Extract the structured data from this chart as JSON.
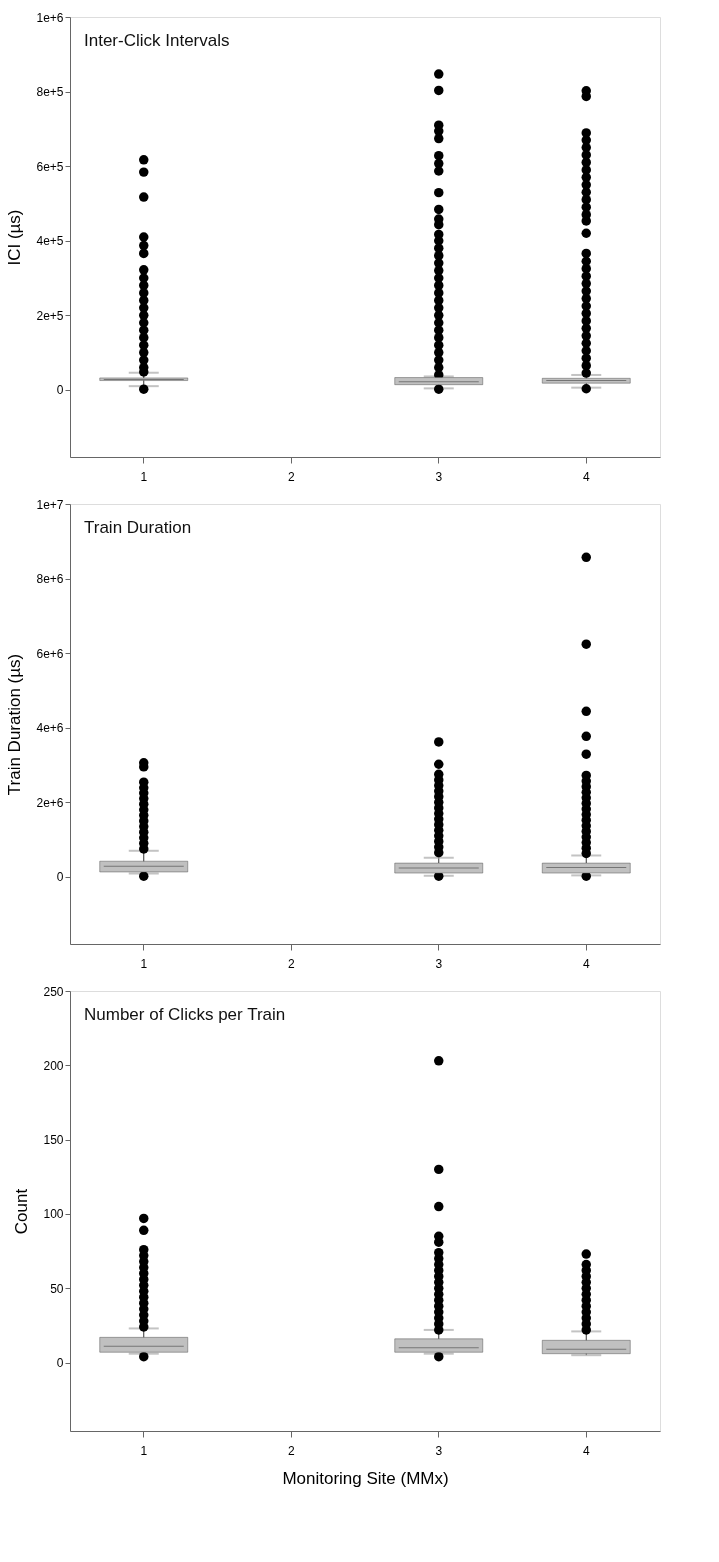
{
  "chart_data": [
    {
      "type": "box",
      "title": "Inter-Click Intervals",
      "ylabel": "ICI (µs)",
      "categories": [
        "1",
        "2",
        "3",
        "4"
      ],
      "ylim": [
        -180000,
        1000000
      ],
      "yticks": [
        0,
        {
          "value": 200000,
          "label": "2e+5"
        },
        {
          "value": 400000,
          "label": "4e+5"
        },
        {
          "value": 600000,
          "label": "6e+5"
        },
        {
          "value": 800000,
          "label": "8e+5"
        },
        {
          "value": 1000000,
          "label": "1e+6"
        }
      ],
      "grid": false,
      "series": [
        {
          "color": "#c0c0c0",
          "boxes": [
            {
              "low": 10000,
              "q1": 25000,
              "median": 28000,
              "q3": 32000,
              "high": 46000,
              "outliers": [
                617000,
                584000,
                517000,
                410000,
                387000,
                366000,
                322000,
                300000,
                280000,
                260000,
                240000,
                220000,
                200000,
                180000,
                160000,
                140000,
                120000,
                100000,
                80000,
                60000,
                48000,
                2000
              ]
            },
            null,
            {
              "low": 4000,
              "q1": 14000,
              "median": 22000,
              "q3": 33000,
              "high": 36000,
              "outliers": [
                847000,
                803000,
                710000,
                694000,
                674000,
                628000,
                607000,
                587000,
                529000,
                484000,
                458000,
                443000,
                417000,
                400000,
                380000,
                360000,
                340000,
                320000,
                300000,
                280000,
                260000,
                240000,
                220000,
                200000,
                180000,
                160000,
                140000,
                120000,
                100000,
                80000,
                60000,
                40000,
                2000
              ]
            },
            {
              "low": 6000,
              "q1": 18000,
              "median": 25000,
              "q3": 31000,
              "high": 40000,
              "outliers": [
                802000,
                787000,
                689000,
                670000,
                650000,
                630000,
                610000,
                590000,
                570000,
                550000,
                530000,
                510000,
                490000,
                470000,
                453000,
                420000,
                366000,
                345000,
                325000,
                305000,
                285000,
                265000,
                245000,
                225000,
                205000,
                185000,
                165000,
                145000,
                125000,
                105000,
                85000,
                65000,
                45000,
                3000
              ]
            }
          ]
        }
      ]
    },
    {
      "type": "box",
      "title": "Train Duration",
      "ylabel": "Train Duration (µs)",
      "categories": [
        "1",
        "2",
        "3",
        "4"
      ],
      "ylim": [
        -1800000,
        10000000
      ],
      "yticks": [
        0,
        {
          "value": 2000000,
          "label": "2e+6"
        },
        {
          "value": 4000000,
          "label": "4e+6"
        },
        {
          "value": 6000000,
          "label": "6e+6"
        },
        {
          "value": 8000000,
          "label": "8e+6"
        },
        {
          "value": 10000000,
          "label": "1e+7"
        }
      ],
      "grid": false,
      "series": [
        {
          "color": "#c0c0c0",
          "boxes": [
            {
              "low": 90000,
              "q1": 133000,
              "median": 287000,
              "q3": 420000,
              "high": 700000,
              "outliers": [
                3060000,
                2950000,
                2540000,
                2390000,
                2250000,
                2100000,
                1950000,
                1800000,
                1650000,
                1500000,
                1350000,
                1200000,
                1050000,
                900000,
                750000,
                20000
              ]
            },
            null,
            {
              "low": 30000,
              "q1": 103000,
              "median": 236000,
              "q3": 369000,
              "high": 513000,
              "outliers": [
                3620000,
                3020000,
                2750000,
                2600000,
                2450000,
                2300000,
                2150000,
                2000000,
                1850000,
                1700000,
                1550000,
                1400000,
                1250000,
                1100000,
                950000,
                800000,
                650000,
                20000
              ]
            },
            {
              "low": 40000,
              "q1": 103000,
              "median": 250000,
              "q3": 369000,
              "high": 574000,
              "outliers": [
                8570000,
                6240000,
                4440000,
                3770000,
                3290000,
                2720000,
                2570000,
                2420000,
                2270000,
                2120000,
                1970000,
                1820000,
                1670000,
                1520000,
                1370000,
                1220000,
                1070000,
                920000,
                770000,
                630000,
                20000
              ]
            }
          ]
        }
      ]
    },
    {
      "type": "box",
      "title": "Number of Clicks per Train",
      "ylabel": "Count",
      "xlabel": "Monitoring Site (MMx)",
      "categories": [
        "1",
        "2",
        "3",
        "4"
      ],
      "ylim": [
        -46,
        250
      ],
      "yticks": [
        0,
        50,
        100,
        150,
        200,
        250
      ],
      "grid": false,
      "series": [
        {
          "color": "#c0c0c0",
          "boxes": [
            {
              "low": 6,
              "q1": 7,
              "median": 11,
              "q3": 17,
              "high": 23,
              "outliers": [
                97,
                89,
                76,
                72,
                68,
                64,
                60,
                56,
                52,
                48,
                44,
                40,
                36,
                32,
                28,
                24,
                4
              ]
            },
            null,
            {
              "low": 6,
              "q1": 7,
              "median": 10,
              "q3": 16,
              "high": 22,
              "outliers": [
                203,
                130,
                105,
                85,
                81,
                74,
                70,
                66,
                62,
                58,
                54,
                50,
                46,
                42,
                38,
                34,
                30,
                26,
                22,
                4
              ]
            },
            {
              "low": 5,
              "q1": 6,
              "median": 9,
              "q3": 15,
              "high": 21,
              "outliers": [
                73,
                66,
                62,
                58,
                54,
                50,
                46,
                42,
                38,
                34,
                30,
                26,
                22
              ]
            }
          ]
        }
      ]
    }
  ]
}
